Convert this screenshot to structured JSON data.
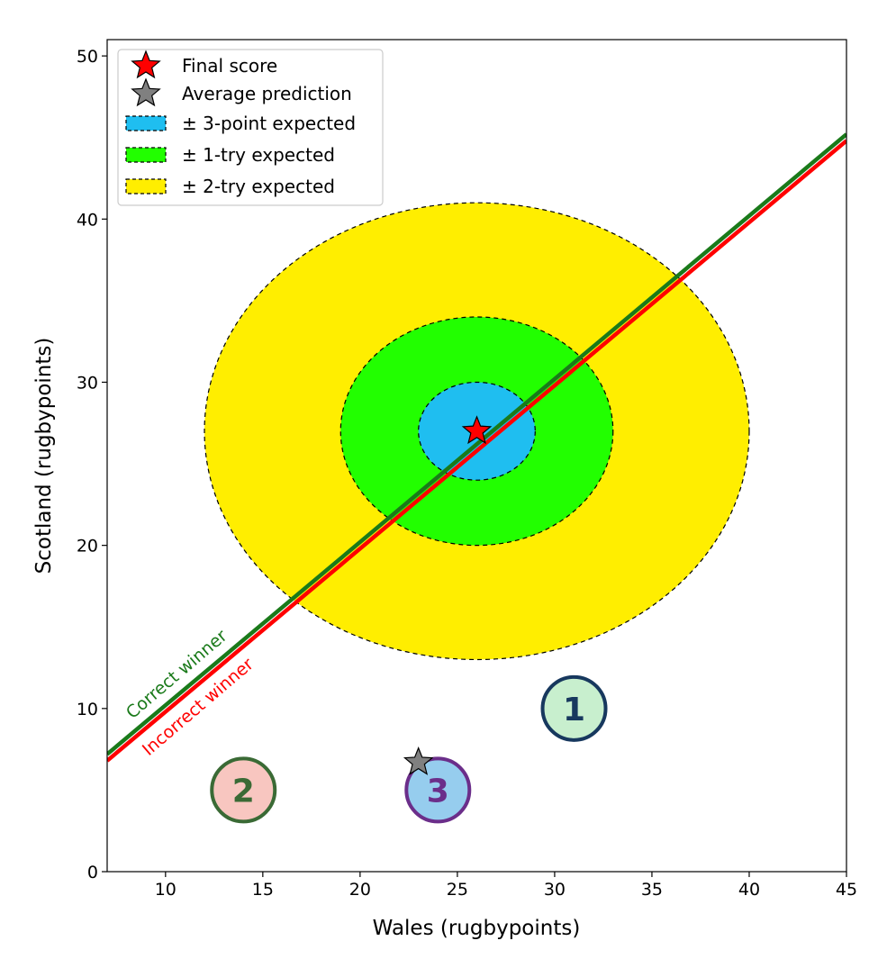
{
  "chart_data": {
    "type": "scatter",
    "xlabel": "Wales (rugbypoints)",
    "ylabel": "Scotland (rugbypoints)",
    "xlim": [
      7,
      45
    ],
    "ylim": [
      0,
      51
    ],
    "x_ticks": [
      10,
      15,
      20,
      25,
      30,
      35,
      40,
      45
    ],
    "y_ticks": [
      0,
      10,
      20,
      30,
      40,
      50
    ],
    "grid": false,
    "legend_position": "top-left",
    "final_score": {
      "label": "Final score",
      "x": 26,
      "y": 27,
      "color": "#ff0000"
    },
    "average_prediction": {
      "label": "Average prediction",
      "x": 23,
      "y": 6.7,
      "color": "#808080"
    },
    "regions": [
      {
        "label": "± 2-try expected",
        "center": [
          26,
          27
        ],
        "rx": 14,
        "ry": 14,
        "color": "#ffee00"
      },
      {
        "label": "± 1-try expected",
        "center": [
          26,
          27
        ],
        "rx": 7,
        "ry": 7,
        "color": "#22ff00"
      },
      {
        "label": "± 3-point expected",
        "center": [
          26,
          27
        ],
        "rx": 3,
        "ry": 3,
        "color": "#1fbef0"
      }
    ],
    "lines": [
      {
        "label": "Correct winner",
        "points": [
          [
            7,
            7.2
          ],
          [
            45,
            45.2
          ]
        ],
        "color": "#1a7a1a"
      },
      {
        "label": "Incorrect winner",
        "points": [
          [
            7,
            6.8
          ],
          [
            45,
            44.8
          ]
        ],
        "color": "#ff0000"
      }
    ],
    "numbered_markers": [
      {
        "number": "1",
        "x": 31,
        "y": 10,
        "fill": "#c8efce",
        "edge": "#17385e"
      },
      {
        "number": "2",
        "x": 14,
        "y": 5,
        "fill": "#f8c6c0",
        "edge": "#3a6a35"
      },
      {
        "number": "3",
        "x": 24,
        "y": 5,
        "fill": "#96cdee",
        "edge": "#6b2e8a"
      }
    ]
  }
}
